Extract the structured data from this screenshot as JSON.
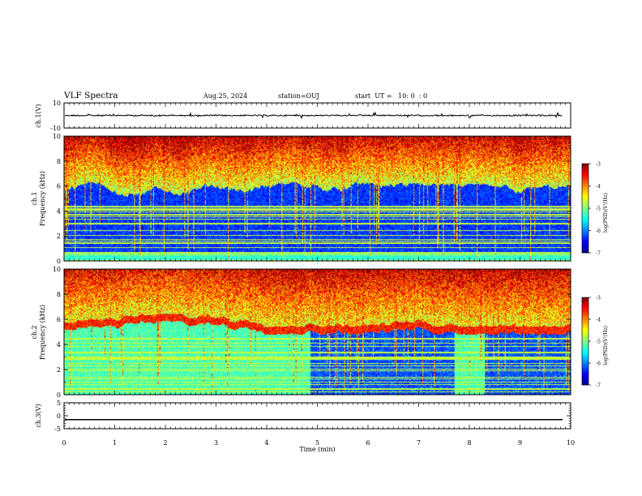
{
  "header": {
    "title": "VLF Spectra",
    "date": "Aug.25, 2024",
    "station": "station=OUJ",
    "start": "start  UT =   10: 0  : 0"
  },
  "chart_data": [
    {
      "type": "line",
      "panel": "waveform-ch1",
      "ylabel": "ch.1(V)",
      "ylim": [
        -10,
        10
      ],
      "yticks": [
        "10",
        "-10"
      ],
      "series": [
        {
          "values_description_free": true,
          "mean": 0
        }
      ]
    },
    {
      "type": "heatmap",
      "panel": "spectrogram-ch1",
      "ylabel": "ch.1\nFrequency (kHz)",
      "ylim": [
        0,
        10
      ],
      "yticks": [
        "0",
        "2",
        "4",
        "6",
        "8",
        "10"
      ],
      "colorbar": {
        "label": "log(PSD)(V²/Hz)",
        "range": [
          -7,
          -3
        ],
        "ticks": [
          "-3",
          "-4",
          "-5",
          "-6",
          "-7"
        ]
      }
    },
    {
      "type": "heatmap",
      "panel": "spectrogram-ch2",
      "ylabel": "ch.2\nFrequency (kHz)",
      "ylim": [
        0,
        10
      ],
      "yticks": [
        "0",
        "2",
        "4",
        "6",
        "8",
        "10"
      ],
      "colorbar": {
        "label": "log(PSD)(V²/Hz)",
        "range": [
          -7,
          -3
        ],
        "ticks": [
          "-3",
          "-4",
          "-5",
          "-6",
          "-7"
        ]
      }
    },
    {
      "type": "line",
      "panel": "waveform-ch3",
      "ylabel": "ch.3(V)",
      "ylim": [
        -5,
        5
      ],
      "yticks": [
        "5",
        "0",
        "-5"
      ],
      "series": [
        {
          "values": [
            -1.5,
            -1.5
          ]
        }
      ]
    }
  ],
  "xaxis": {
    "label": "Time (min)",
    "range": [
      0,
      10
    ],
    "ticks": [
      "0",
      "1",
      "2",
      "3",
      "4",
      "5",
      "6",
      "7",
      "8",
      "9",
      "10"
    ]
  },
  "colors": {
    "jet": [
      "#00008f",
      "#0000ff",
      "#00ffff",
      "#7fff7f",
      "#ffff00",
      "#ff0000",
      "#800000"
    ]
  }
}
